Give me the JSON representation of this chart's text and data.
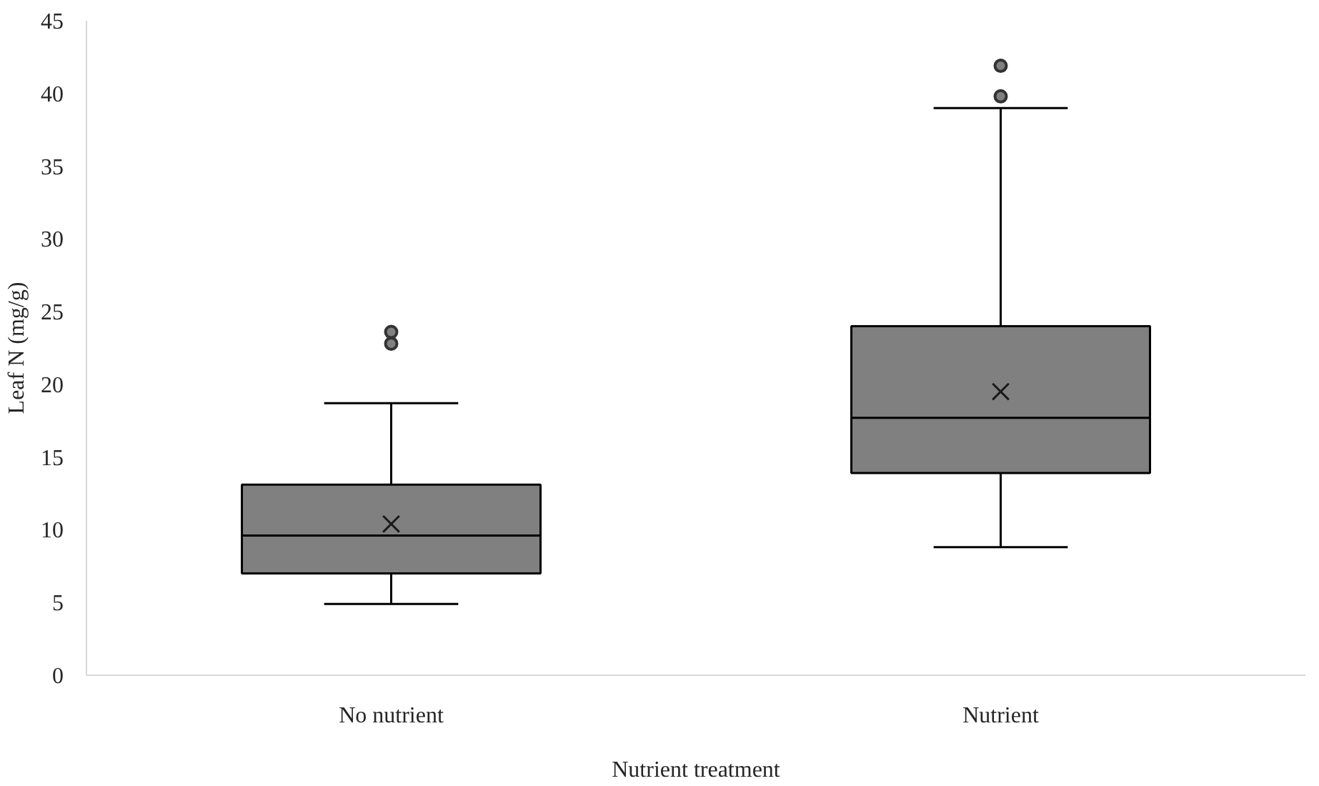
{
  "chart_data": {
    "type": "box",
    "xlabel": "Nutrient treatment",
    "ylabel": "Leaf N (mg/g)",
    "categories": [
      "No nutrient",
      "Nutrient"
    ],
    "boxes": [
      {
        "low": 4.9,
        "q1": 7.0,
        "median": 9.6,
        "q3": 13.1,
        "high": 18.7,
        "mean": 10.4,
        "outliers": [
          22.8,
          23.6
        ]
      },
      {
        "low": 8.8,
        "q1": 13.9,
        "median": 17.7,
        "q3": 24.0,
        "high": 39.0,
        "mean": 19.5,
        "outliers": [
          39.8,
          41.9
        ]
      }
    ],
    "color": "#808080",
    "ylim": [
      0,
      45
    ],
    "yticks": [
      0,
      5,
      10,
      15,
      20,
      25,
      30,
      35,
      40,
      45
    ],
    "grid": false
  }
}
